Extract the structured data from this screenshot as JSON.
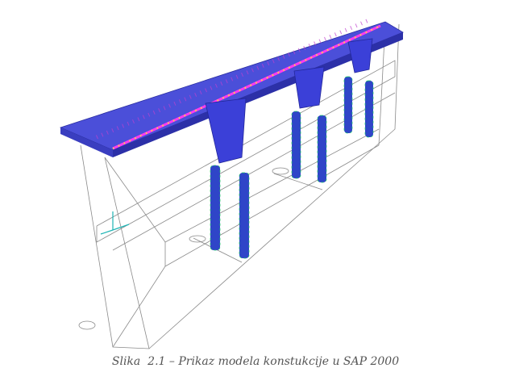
{
  "figure": {
    "caption": "Slika  2.1 – Prikaz modela konstukcije u SAP 2000"
  }
}
